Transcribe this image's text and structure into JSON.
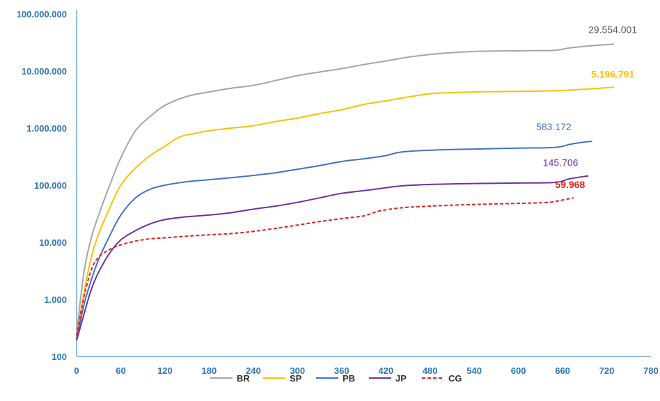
{
  "chart_data": {
    "type": "line",
    "title": "",
    "xlabel": "",
    "ylabel": "",
    "y_scale": "log",
    "ylim": [
      100,
      100000000
    ],
    "xlim": [
      0,
      780
    ],
    "x_ticks": [
      "0",
      "60",
      "120",
      "180",
      "240",
      "300",
      "360",
      "420",
      "480",
      "540",
      "600",
      "660",
      "720",
      "780"
    ],
    "y_ticks": [
      "100",
      "1.000",
      "10.000",
      "100.000",
      "1.000.000",
      "10.000.000",
      "100.000.000"
    ],
    "grid": false,
    "legend": "bottom",
    "series": [
      {
        "name": "BR",
        "color": "#a5a5a5",
        "dash": "solid",
        "end_label": "29.554.001",
        "points": [
          [
            0,
            250
          ],
          [
            10,
            3000
          ],
          [
            20,
            12000
          ],
          [
            30,
            30000
          ],
          [
            45,
            100000
          ],
          [
            60,
            300000
          ],
          [
            80,
            900000
          ],
          [
            100,
            1600000
          ],
          [
            120,
            2500000
          ],
          [
            150,
            3600000
          ],
          [
            180,
            4300000
          ],
          [
            210,
            5000000
          ],
          [
            240,
            5600000
          ],
          [
            270,
            6800000
          ],
          [
            300,
            8300000
          ],
          [
            330,
            9600000
          ],
          [
            360,
            11000000
          ],
          [
            390,
            13000000
          ],
          [
            420,
            15000000
          ],
          [
            450,
            17500000
          ],
          [
            480,
            19500000
          ],
          [
            510,
            21000000
          ],
          [
            540,
            22000000
          ],
          [
            570,
            22400000
          ],
          [
            600,
            22600000
          ],
          [
            630,
            22800000
          ],
          [
            650,
            23000000
          ],
          [
            670,
            25500000
          ],
          [
            700,
            27800000
          ],
          [
            730,
            29554001
          ]
        ]
      },
      {
        "name": "SP",
        "color": "#ffc000",
        "dash": "solid",
        "end_label": "5.196.791",
        "points": [
          [
            0,
            220
          ],
          [
            10,
            1300
          ],
          [
            20,
            5500
          ],
          [
            30,
            14000
          ],
          [
            45,
            40000
          ],
          [
            60,
            100000
          ],
          [
            80,
            200000
          ],
          [
            100,
            330000
          ],
          [
            120,
            480000
          ],
          [
            140,
            700000
          ],
          [
            160,
            800000
          ],
          [
            180,
            900000
          ],
          [
            210,
            1000000
          ],
          [
            240,
            1100000
          ],
          [
            270,
            1300000
          ],
          [
            300,
            1500000
          ],
          [
            330,
            1800000
          ],
          [
            360,
            2100000
          ],
          [
            390,
            2600000
          ],
          [
            420,
            3000000
          ],
          [
            450,
            3500000
          ],
          [
            480,
            4000000
          ],
          [
            510,
            4200000
          ],
          [
            540,
            4300000
          ],
          [
            570,
            4350000
          ],
          [
            600,
            4400000
          ],
          [
            630,
            4450000
          ],
          [
            650,
            4500000
          ],
          [
            690,
            4800000
          ],
          [
            730,
            5196791
          ]
        ]
      },
      {
        "name": "PB",
        "color": "#4472c4",
        "dash": "solid",
        "end_label": "583.172",
        "points": [
          [
            0,
            200
          ],
          [
            10,
            800
          ],
          [
            20,
            2200
          ],
          [
            30,
            5000
          ],
          [
            45,
            13000
          ],
          [
            60,
            30000
          ],
          [
            80,
            60000
          ],
          [
            100,
            85000
          ],
          [
            120,
            100000
          ],
          [
            150,
            115000
          ],
          [
            180,
            125000
          ],
          [
            210,
            135000
          ],
          [
            240,
            148000
          ],
          [
            270,
            165000
          ],
          [
            300,
            190000
          ],
          [
            330,
            220000
          ],
          [
            360,
            260000
          ],
          [
            390,
            290000
          ],
          [
            420,
            330000
          ],
          [
            440,
            380000
          ],
          [
            480,
            410000
          ],
          [
            540,
            430000
          ],
          [
            600,
            445000
          ],
          [
            650,
            460000
          ],
          [
            670,
            520000
          ],
          [
            690,
            570000
          ],
          [
            700,
            583172
          ]
        ]
      },
      {
        "name": "JP",
        "color": "#7030a0",
        "dash": "solid",
        "end_label": "145.706",
        "points": [
          [
            0,
            190
          ],
          [
            10,
            550
          ],
          [
            20,
            1500
          ],
          [
            30,
            3000
          ],
          [
            45,
            6500
          ],
          [
            60,
            11000
          ],
          [
            80,
            16000
          ],
          [
            100,
            21000
          ],
          [
            120,
            25000
          ],
          [
            150,
            28000
          ],
          [
            180,
            30000
          ],
          [
            210,
            33000
          ],
          [
            240,
            38000
          ],
          [
            270,
            43000
          ],
          [
            300,
            50000
          ],
          [
            330,
            60000
          ],
          [
            360,
            72000
          ],
          [
            390,
            80000
          ],
          [
            420,
            90000
          ],
          [
            440,
            97000
          ],
          [
            480,
            103000
          ],
          [
            540,
            107000
          ],
          [
            600,
            109000
          ],
          [
            650,
            112000
          ],
          [
            670,
            130000
          ],
          [
            695,
            145706
          ]
        ]
      },
      {
        "name": "CG",
        "color": "#e02020",
        "dash": "dashed",
        "end_label": "59.968",
        "points": [
          [
            0,
            230
          ],
          [
            10,
            1100
          ],
          [
            20,
            3300
          ],
          [
            30,
            5500
          ],
          [
            45,
            7500
          ],
          [
            60,
            9000
          ],
          [
            80,
            10500
          ],
          [
            100,
            11500
          ],
          [
            120,
            12000
          ],
          [
            150,
            12800
          ],
          [
            180,
            13500
          ],
          [
            210,
            14200
          ],
          [
            240,
            15500
          ],
          [
            270,
            17500
          ],
          [
            300,
            20000
          ],
          [
            330,
            23000
          ],
          [
            360,
            26000
          ],
          [
            390,
            29000
          ],
          [
            410,
            35000
          ],
          [
            440,
            40000
          ],
          [
            480,
            43000
          ],
          [
            540,
            46000
          ],
          [
            600,
            48000
          ],
          [
            640,
            50000
          ],
          [
            660,
            55000
          ],
          [
            675,
            59968
          ]
        ]
      }
    ]
  }
}
